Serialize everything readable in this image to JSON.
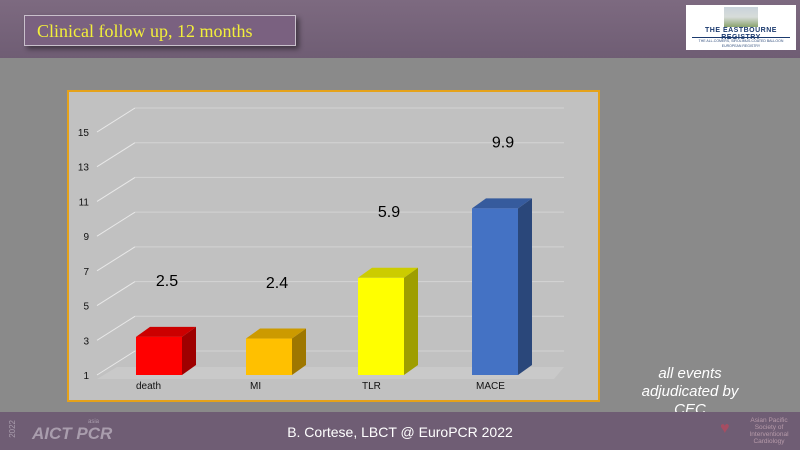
{
  "slide_title": "Clinical follow up, 12 months",
  "logo_top": {
    "name": "THE EASTBOURNE REGISTRY",
    "sub1": "THE ALL-COMERS, SIROLIMUS-COATED BALLOON",
    "sub2": "EUROPEAN REGISTRY"
  },
  "note_lines": [
    "all events",
    "adjudicated by",
    "CEC"
  ],
  "footer": "B. Cortese, LBCT @ EuroPCR 2022",
  "footer_logos": {
    "left_year": "2022",
    "left_main": "AICT PCR",
    "left_sub": "asia",
    "right": "Asian Pacific Society of Interventional Cardiology"
  },
  "colors": {
    "death": "#ff0000",
    "MI": "#ffc000",
    "TLR": "#ffff00",
    "MACE": "#4472c4",
    "title_text": "#f3ef3a"
  },
  "chart_data": {
    "type": "bar",
    "categories": [
      "death",
      "MI",
      "TLR",
      "MACE"
    ],
    "values": [
      2.5,
      2.4,
      5.9,
      9.9
    ],
    "data_labels": [
      "2.5",
      "2.4",
      "5.9",
      "9.9"
    ],
    "yticks": [
      1,
      3,
      5,
      7,
      9,
      11,
      13,
      15
    ],
    "ylim": [
      1,
      15
    ],
    "title": "",
    "xlabel": "",
    "ylabel": "",
    "grid": true,
    "bar_colors": [
      "#ff0000",
      "#ffc000",
      "#ffff00",
      "#4472c4"
    ]
  }
}
